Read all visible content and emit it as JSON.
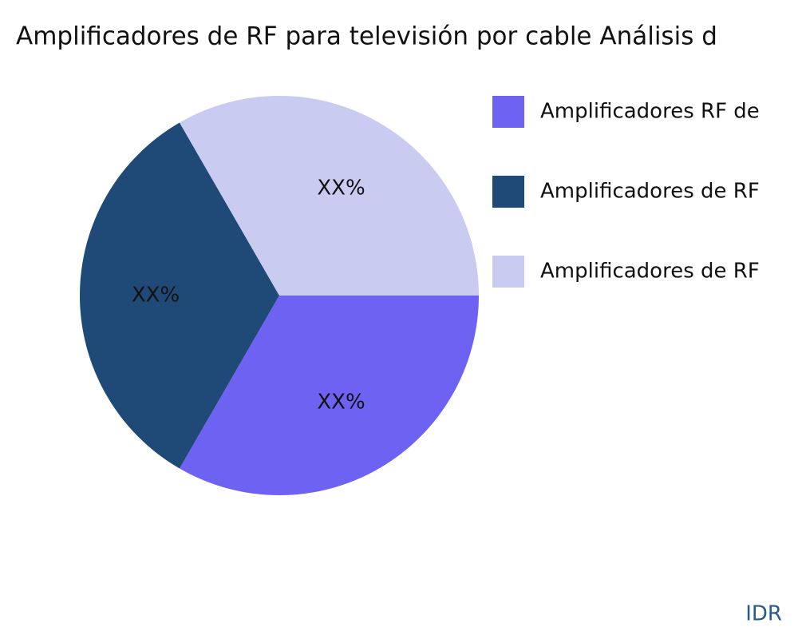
{
  "chart_data": {
    "type": "pie",
    "title": "Amplificadores de RF para televisión por cable Análisis d",
    "categories": [
      "Amplificadores RF de",
      "Amplificadores de RF",
      "Amplificadores de RF"
    ],
    "values": [
      33.3,
      33.3,
      33.3
    ],
    "value_labels": [
      "XX%",
      "XX%",
      "XX%"
    ],
    "colors": [
      "#6e62f2",
      "#1f4a78",
      "#c9cbf1"
    ],
    "watermark": "IDR"
  }
}
